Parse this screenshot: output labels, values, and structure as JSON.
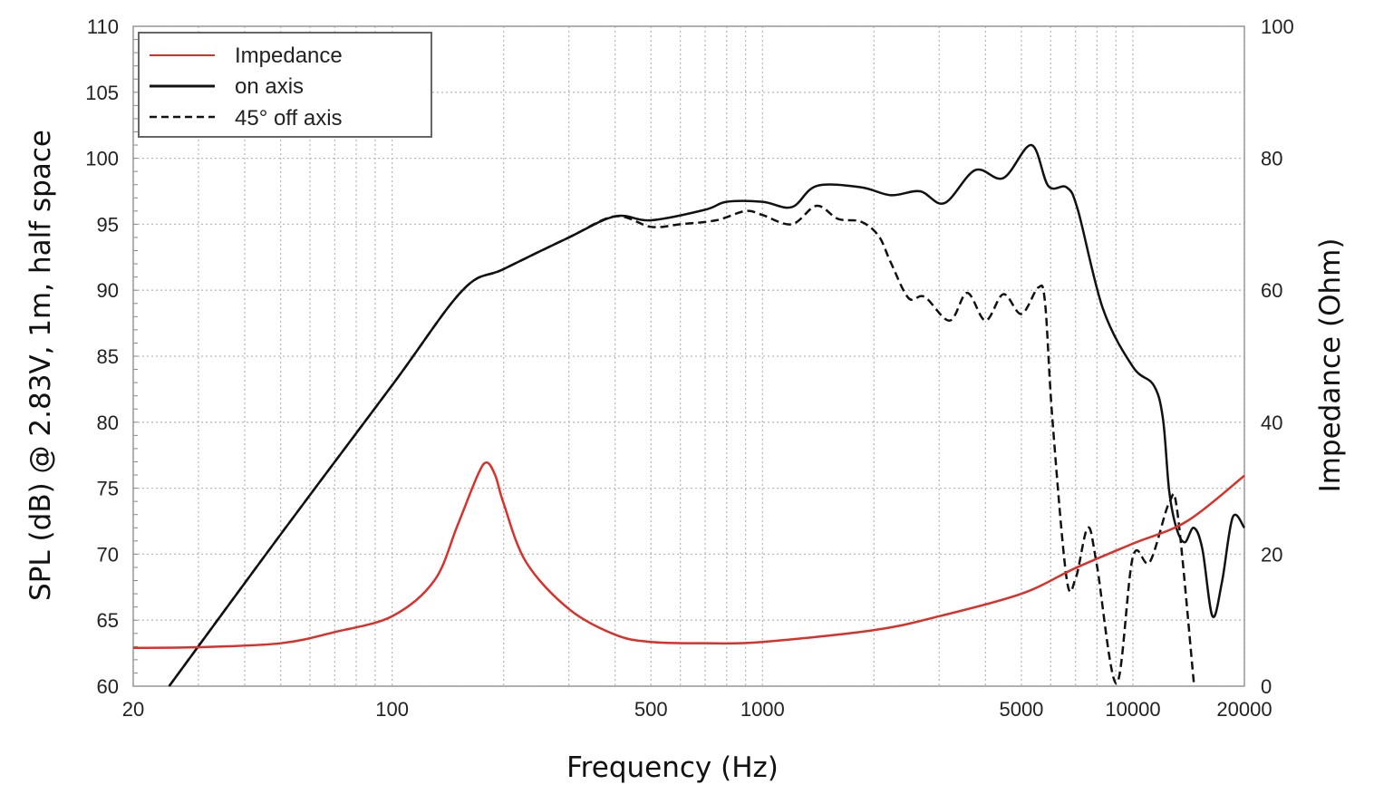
{
  "chart_data": {
    "type": "line",
    "title": "",
    "xlabel": "Frequency (Hz)",
    "ylabel": "SPL (dB) @ 2.83V, 1m, half space",
    "y2label": "Impedance (Ohm)",
    "xscale": "log",
    "xlim": [
      20,
      20000
    ],
    "ylim": [
      60,
      110
    ],
    "y2lim": [
      0,
      100
    ],
    "grid": true,
    "legend_position": "top-left",
    "x_ticks": [
      20,
      100,
      500,
      1000,
      5000,
      10000,
      20000
    ],
    "x_tick_labels": [
      "20",
      "100",
      "500",
      "1000",
      "5000",
      "10000",
      "20000"
    ],
    "y_ticks": [
      "60",
      "65",
      "70",
      "75",
      "80",
      "85",
      "90",
      "95",
      "100",
      "105",
      "110"
    ],
    "y2_ticks": [
      "0",
      "20",
      "40",
      "60",
      "80",
      "100"
    ],
    "series": [
      {
        "name": "Impedance",
        "axis": "right",
        "color": "#d9302a",
        "style": "solid",
        "x": [
          20,
          30,
          50,
          70,
          100,
          130,
          150,
          170,
          180,
          190,
          200,
          230,
          300,
          400,
          500,
          700,
          1000,
          2000,
          3000,
          5000,
          7000,
          10000,
          14000,
          20000
        ],
        "y": [
          5.8,
          5.9,
          6.5,
          8.2,
          10.6,
          16,
          24.3,
          31.9,
          33.9,
          31.9,
          27.7,
          18.8,
          11.7,
          7.8,
          6.7,
          6.5,
          6.7,
          8.5,
          10.6,
          14.0,
          17.9,
          21.6,
          25,
          31.9
        ]
      },
      {
        "name": "on axis",
        "axis": "left",
        "color": "#111111",
        "style": "solid",
        "x": [
          25,
          50,
          100,
          155,
          200,
          300,
          400,
          500,
          700,
          800,
          1000,
          1200,
          1400,
          1844,
          2220,
          2660,
          3100,
          3750,
          4470,
          5320,
          5910,
          6620,
          7100,
          8300,
          10000,
          11380,
          12050,
          12530,
          13100,
          13800,
          14600,
          15400,
          16400,
          17400,
          18600,
          20000
        ],
        "y": [
          60,
          71.5,
          82.8,
          90,
          91.6,
          94,
          95.6,
          95.3,
          96.1,
          96.7,
          96.7,
          96.3,
          97.9,
          97.8,
          97.2,
          97.5,
          96.6,
          99.1,
          98.5,
          101.0,
          97.9,
          97.8,
          96.1,
          88.6,
          84.2,
          82.8,
          80.3,
          74.8,
          72.0,
          70.9,
          72.0,
          70.4,
          65.3,
          67.9,
          72.8,
          72.0
        ]
      },
      {
        "name": "45° off axis",
        "axis": "left",
        "color": "#111111",
        "style": "dashed",
        "x": [
          25,
          50,
          100,
          155,
          200,
          300,
          400,
          500,
          600,
          750,
          900,
          1000,
          1200,
          1400,
          1600,
          1844,
          2060,
          2220,
          2480,
          2740,
          3200,
          3570,
          4000,
          4470,
          5000,
          5550,
          5790,
          6060,
          6620,
          7010,
          7550,
          7980,
          9030,
          10000,
          11100,
          12530,
          13200,
          14600
        ],
        "y": [
          60,
          71.5,
          82.8,
          90,
          91.6,
          94,
          95.6,
          94.8,
          95.0,
          95.3,
          96.0,
          95.7,
          95.0,
          96.4,
          95.4,
          95.2,
          94.1,
          92.1,
          89.4,
          89.5,
          87.7,
          89.8,
          87.7,
          89.7,
          88.2,
          90.2,
          89.1,
          80.3,
          68.2,
          68.2,
          72.0,
          69.3,
          60.2,
          69.8,
          69.4,
          73.9,
          73.1,
          60.3
        ]
      }
    ]
  }
}
